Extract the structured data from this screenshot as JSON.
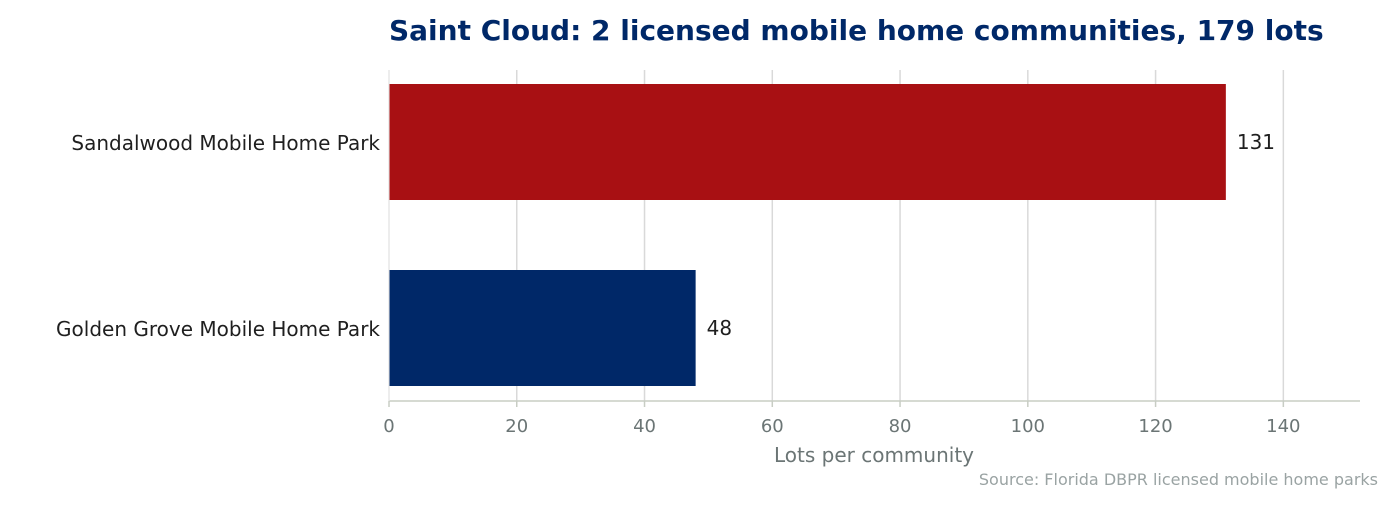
{
  "chart_data": {
    "type": "bar",
    "orientation": "horizontal",
    "title": "Saint Cloud: 2 licensed mobile home communities, 179 lots",
    "xlabel": "Lots per community",
    "ylabel": "",
    "categories": [
      "Sandalwood Mobile Home Park",
      "Golden Grove Mobile Home Park"
    ],
    "values": [
      131,
      48
    ],
    "value_labels": [
      "131",
      "48"
    ],
    "bar_colors": [
      "#a81013",
      "#002868"
    ],
    "xlim": [
      0,
      152
    ],
    "xticks": [
      0,
      20,
      40,
      60,
      80,
      100,
      120,
      140
    ],
    "xtick_labels": [
      "0",
      "20",
      "40",
      "60",
      "80",
      "100",
      "120",
      "140"
    ],
    "grid": "vertical",
    "legend": "none",
    "source": "Source: Florida DBPR licensed mobile home parks"
  },
  "colors": {
    "title": "#002868",
    "grid": "#d9d9d9",
    "axis": "#c8cdc4",
    "tick_text": "#6b7575",
    "source_text": "#9aa3a3"
  }
}
